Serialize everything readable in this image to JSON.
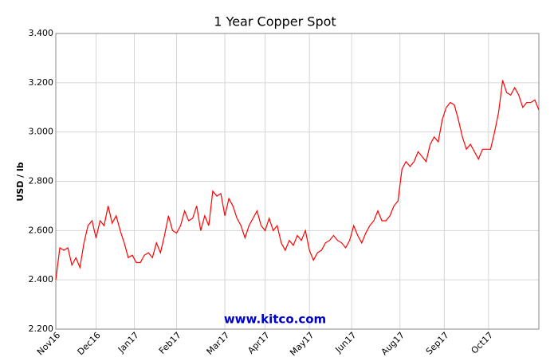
{
  "chart_data": {
    "type": "line",
    "title": "1 Year Copper Spot",
    "y_label": "USD / lb",
    "watermark": "www.kitco.com",
    "x": [
      0,
      2,
      4,
      6,
      8,
      10,
      12,
      14,
      16,
      18,
      20,
      22,
      24,
      26,
      28,
      30,
      32,
      34,
      36,
      38,
      40,
      42,
      44,
      46,
      48,
      50,
      52,
      54,
      56,
      58,
      60,
      62,
      64,
      66,
      68,
      70,
      72,
      74,
      76,
      78,
      80,
      82,
      84,
      86,
      88,
      90,
      92,
      94,
      96,
      98,
      100,
      102,
      104,
      106,
      108,
      110,
      112,
      114,
      116,
      118,
      120,
      122,
      124,
      126,
      128,
      130,
      132,
      134,
      136,
      138,
      140,
      142,
      144,
      146,
      148,
      150,
      152,
      154,
      156,
      158,
      160,
      162,
      164,
      166,
      168,
      170,
      172,
      174,
      176,
      178,
      180,
      182,
      184,
      186,
      188,
      190,
      192,
      194,
      196,
      198,
      200,
      202,
      204,
      206,
      208,
      210,
      212,
      214,
      216,
      218,
      220,
      222,
      224,
      226,
      228,
      230,
      232,
      234,
      236,
      238,
      240
    ],
    "series": [
      {
        "name": "Copper",
        "color": "#ff0000",
        "values": [
          2.4,
          2.53,
          2.52,
          2.53,
          2.46,
          2.49,
          2.45,
          2.55,
          2.62,
          2.64,
          2.57,
          2.64,
          2.62,
          2.7,
          2.63,
          2.66,
          2.6,
          2.55,
          2.49,
          2.5,
          2.47,
          2.47,
          2.5,
          2.51,
          2.49,
          2.55,
          2.51,
          2.58,
          2.66,
          2.6,
          2.59,
          2.62,
          2.68,
          2.64,
          2.65,
          2.7,
          2.6,
          2.66,
          2.62,
          2.76,
          2.74,
          2.75,
          2.66,
          2.73,
          2.7,
          2.65,
          2.62,
          2.57,
          2.62,
          2.65,
          2.68,
          2.62,
          2.6,
          2.65,
          2.6,
          2.62,
          2.55,
          2.52,
          2.56,
          2.54,
          2.58,
          2.56,
          2.6,
          2.52,
          2.48,
          2.51,
          2.52,
          2.55,
          2.56,
          2.58,
          2.56,
          2.55,
          2.53,
          2.56,
          2.62,
          2.58,
          2.55,
          2.59,
          2.62,
          2.64,
          2.68,
          2.64,
          2.64,
          2.66,
          2.7,
          2.72,
          2.85,
          2.88,
          2.86,
          2.88,
          2.92,
          2.9,
          2.88,
          2.95,
          2.98,
          2.96,
          3.05,
          3.1,
          3.12,
          3.11,
          3.05,
          2.98,
          2.93,
          2.95,
          2.92,
          2.89,
          2.93,
          2.93,
          2.93,
          3.0,
          3.08,
          3.21,
          3.16,
          3.15,
          3.18,
          3.15,
          3.1,
          3.12,
          3.12,
          3.13,
          3.09
        ]
      }
    ],
    "xlim": [
      0,
      240
    ],
    "xticks": [
      {
        "value": 0,
        "label": "Nov16"
      },
      {
        "value": 20,
        "label": "Dec16"
      },
      {
        "value": 39,
        "label": "Jan17"
      },
      {
        "value": 60,
        "label": "Feb17"
      },
      {
        "value": 84,
        "label": "Mar17"
      },
      {
        "value": 104,
        "label": "Apr17"
      },
      {
        "value": 126,
        "label": "May17"
      },
      {
        "value": 147,
        "label": "Jun17"
      },
      {
        "value": 171,
        "label": "Aug17"
      },
      {
        "value": 193,
        "label": "Sep17"
      },
      {
        "value": 215,
        "label": "Oct17"
      }
    ],
    "ylim": [
      2.2,
      3.4
    ],
    "yticks": [
      {
        "value": 2.2,
        "label": "2.200"
      },
      {
        "value": 2.4,
        "label": "2.400"
      },
      {
        "value": 2.6,
        "label": "2.600"
      },
      {
        "value": 2.8,
        "label": "2.800"
      },
      {
        "value": 3.0,
        "label": "3.000"
      },
      {
        "value": 3.2,
        "label": "3.200"
      },
      {
        "value": 3.4,
        "label": "3.400"
      }
    ],
    "grid": true
  }
}
